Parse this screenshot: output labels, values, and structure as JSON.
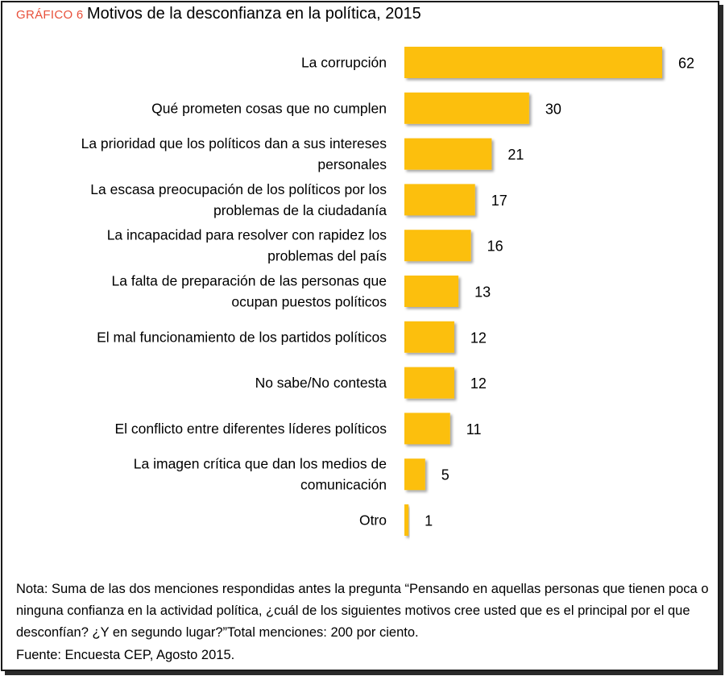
{
  "header": {
    "tag": "GRÁFICO 6",
    "title": "Motivos de la desconfianza en la política, 2015"
  },
  "colors": {
    "bar": "#fcbf10",
    "tag": "#e8503a"
  },
  "chart_data": {
    "type": "bar",
    "orientation": "horizontal",
    "title": "Motivos de la desconfianza en la política, 2015",
    "xlabel": "",
    "ylabel": "",
    "xlim": [
      0,
      62
    ],
    "grid": false,
    "categories": [
      [
        "La corrupción"
      ],
      [
        "Qué prometen cosas que no cumplen"
      ],
      [
        "La prioridad que los políticos dan a sus intereses",
        "personales"
      ],
      [
        "La escasa preocupación de los políticos por los",
        "problemas de la ciudadanía"
      ],
      [
        "La incapacidad para resolver con rapidez los",
        "problemas del país"
      ],
      [
        "La falta de preparación de las personas que",
        "ocupan puestos políticos"
      ],
      [
        "El mal funcionamiento de los partidos políticos"
      ],
      [
        "No sabe/No contesta"
      ],
      [
        "El conflicto entre diferentes líderes políticos"
      ],
      [
        "La imagen crítica que dan los medios de",
        "comunicación"
      ],
      [
        "Otro"
      ]
    ],
    "values": [
      62,
      30,
      21,
      17,
      16,
      13,
      12,
      12,
      11,
      5,
      1
    ]
  },
  "footer": {
    "note": "Nota: Suma de las dos menciones respondidas antes la pregunta “Pensando en aquellas personas que tienen poca o ninguna confianza en la actividad política, ¿cuál de los siguientes motivos cree usted que es el principal por el que desconfían? ¿Y en segundo lugar?”Total menciones: 200 por ciento.",
    "source": "Fuente: Encuesta CEP, Agosto 2015."
  }
}
